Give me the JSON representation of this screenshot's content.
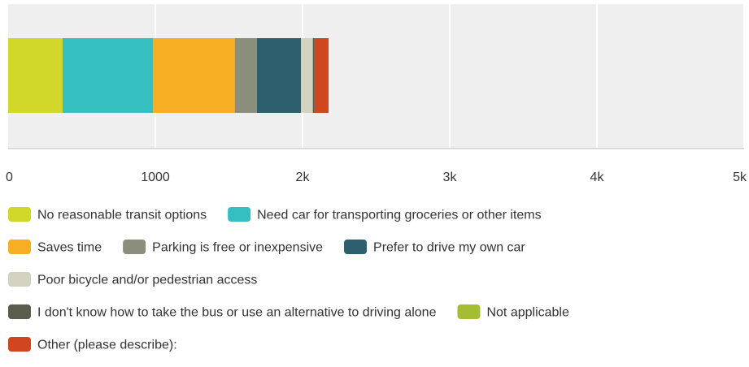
{
  "chart_data": {
    "type": "bar",
    "orientation": "horizontal",
    "stacked": true,
    "title": "",
    "xlabel": "",
    "ylabel": "",
    "xlim": [
      0,
      5000
    ],
    "x_ticks": [
      {
        "value": 0,
        "label": "0"
      },
      {
        "value": 1000,
        "label": "1000"
      },
      {
        "value": 2000,
        "label": "2k"
      },
      {
        "value": 3000,
        "label": "3k"
      },
      {
        "value": 4000,
        "label": "4k"
      },
      {
        "value": 5000,
        "label": "5k"
      }
    ],
    "grid": true,
    "legend_position": "bottom",
    "series": [
      {
        "name": "No reasonable transit options",
        "value": 370,
        "color": "#d2d82a"
      },
      {
        "name": "Need car for transporting groceries or other items",
        "value": 615,
        "color": "#35bfc0"
      },
      {
        "name": "Saves time",
        "value": 555,
        "color": "#f7ae22"
      },
      {
        "name": "Parking is free or inexpensive",
        "value": 150,
        "color": "#8b8d7d"
      },
      {
        "name": "Prefer to drive my own car",
        "value": 300,
        "color": "#2e5f6e"
      },
      {
        "name": "Poor bicycle and/or pedestrian access",
        "value": 80,
        "color": "#d4d3c2"
      },
      {
        "name": "I don't know how to take the bus or use an alternative to driving alone",
        "value": 12,
        "color": "#5b5c4c"
      },
      {
        "name": "Not applicable",
        "value": 0,
        "color": "#a5bd32"
      },
      {
        "name": "Other (please describe):",
        "value": 95,
        "color": "#d0461e"
      }
    ]
  }
}
